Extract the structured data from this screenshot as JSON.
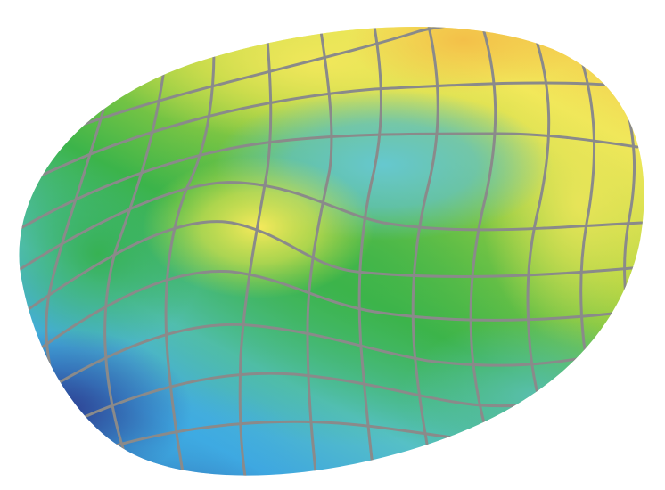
{
  "figure": {
    "kind": "3d-surface-plot",
    "labels": [],
    "colormap": [
      "#2b3f8f",
      "#3ea6e0",
      "#5cc4c4",
      "#3cb44a",
      "#a9d23f",
      "#f2e85a",
      "#f5c24a"
    ],
    "grid_color": "#8a8a8a",
    "background": "#ffffff"
  }
}
